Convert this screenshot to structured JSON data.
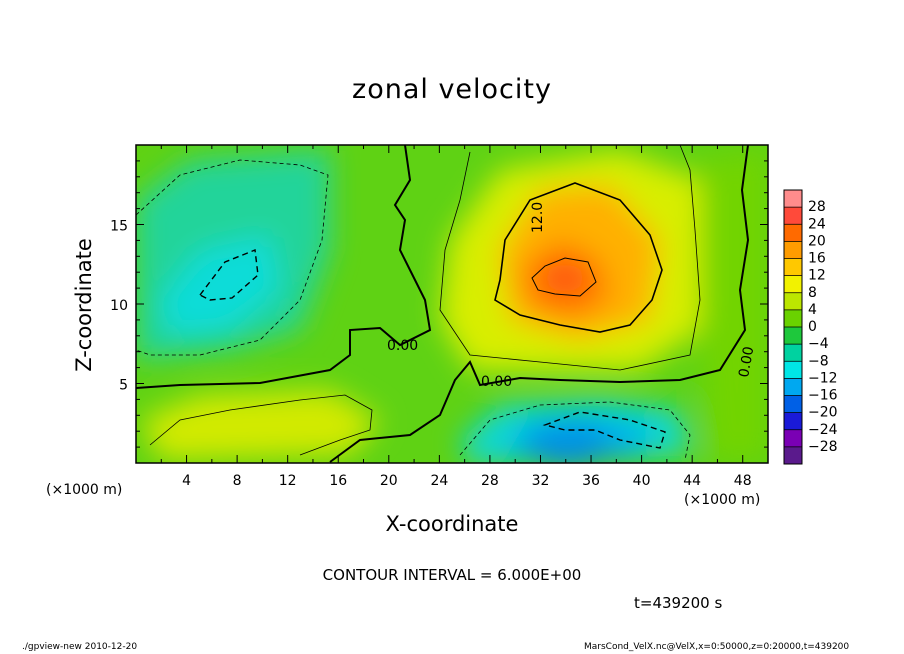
{
  "chart_data": {
    "type": "heatmap",
    "title": "zonal velocity",
    "xlabel": "X-coordinate",
    "ylabel": "Z-coordinate",
    "x_unit_label": "(×1000 m)",
    "x_ticks": [
      4,
      8,
      12,
      16,
      20,
      24,
      28,
      32,
      36,
      40,
      44,
      48
    ],
    "y_ticks": [
      5,
      10,
      15
    ],
    "xlim": [
      0,
      50
    ],
    "ylim": [
      0,
      20
    ],
    "colorbar_levels": [
      28,
      24,
      20,
      16,
      12,
      8,
      4,
      0,
      -4,
      -8,
      -12,
      -16,
      -20,
      -24,
      -28
    ],
    "colorbar_colors": [
      "#ff8c8c",
      "#ff4a3a",
      "#ff6a00",
      "#ff9c00",
      "#ffc800",
      "#f2f200",
      "#bce600",
      "#6ad200",
      "#1ec83c",
      "#00d2a0",
      "#00e6e6",
      "#00a8f0",
      "#0060e6",
      "#1a1ad8",
      "#7a00b4",
      "#5a1a8c"
    ],
    "contour_labels": [
      "12.0",
      "0.00",
      "0.00",
      "0.00"
    ],
    "contour_interval_text": "CONTOUR INTERVAL = 6.000E+00",
    "time_text": "t=439200 s",
    "footer_left": "./gpview-new 2010-12-20",
    "footer_right": "MarsCond_VelX.nc@VelX,x=0:50000,z=0:20000,t=439200",
    "features": [
      {
        "kind": "max",
        "x": 34,
        "z": 11.8,
        "value": 18
      },
      {
        "kind": "min",
        "x": 7.5,
        "z": 11.5,
        "value": -8
      },
      {
        "kind": "min",
        "x": 34,
        "z": 1.5,
        "value": -14
      },
      {
        "kind": "max",
        "x": 6,
        "z": 1.8,
        "value": 9
      }
    ]
  }
}
